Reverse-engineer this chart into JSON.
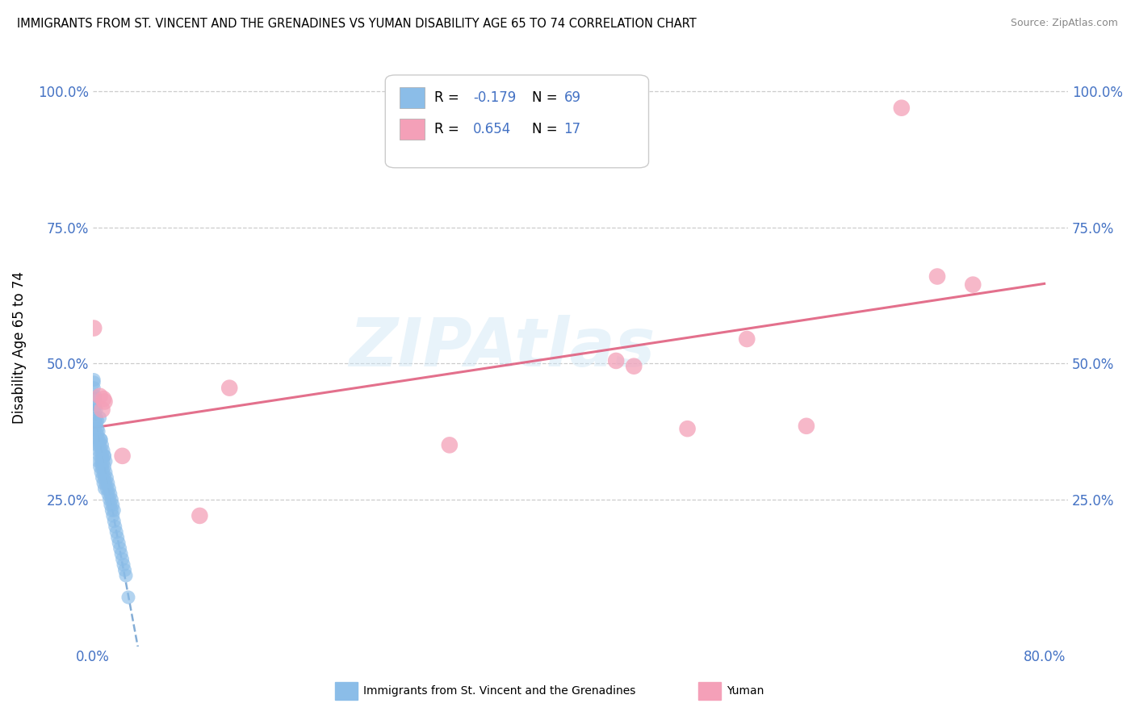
{
  "title": "IMMIGRANTS FROM ST. VINCENT AND THE GRENADINES VS YUMAN DISABILITY AGE 65 TO 74 CORRELATION CHART",
  "source": "Source: ZipAtlas.com",
  "ylabel": "Disability Age 65 to 74",
  "legend_label_blue": "Immigrants from St. Vincent and the Grenadines",
  "legend_label_pink": "Yuman",
  "R_blue": -0.179,
  "N_blue": 69,
  "R_pink": 0.654,
  "N_pink": 17,
  "xlim": [
    0.0,
    0.82
  ],
  "ylim": [
    -0.02,
    1.08
  ],
  "ytick_positions": [
    0.25,
    0.5,
    0.75,
    1.0
  ],
  "ytick_labels": [
    "25.0%",
    "50.0%",
    "75.0%",
    "100.0%"
  ],
  "blue_color": "#8BBDE8",
  "pink_color": "#F4A0B8",
  "trend_blue_color": "#6699CC",
  "trend_pink_color": "#E06080",
  "watermark": "ZIPAtlas",
  "blue_dots_x": [
    0.001,
    0.001,
    0.002,
    0.002,
    0.002,
    0.003,
    0.003,
    0.003,
    0.004,
    0.004,
    0.004,
    0.005,
    0.005,
    0.005,
    0.006,
    0.006,
    0.006,
    0.007,
    0.007,
    0.007,
    0.007,
    0.008,
    0.008,
    0.008,
    0.009,
    0.009,
    0.009,
    0.01,
    0.01,
    0.01,
    0.01,
    0.011,
    0.011,
    0.012,
    0.012,
    0.013,
    0.013,
    0.014,
    0.014,
    0.015,
    0.015,
    0.016,
    0.016,
    0.017,
    0.017,
    0.018,
    0.018,
    0.019,
    0.02,
    0.021,
    0.022,
    0.023,
    0.024,
    0.025,
    0.026,
    0.027,
    0.028,
    0.03,
    0.001,
    0.002,
    0.003,
    0.004,
    0.005,
    0.006,
    0.007,
    0.008,
    0.009,
    0.01,
    0.011
  ],
  "blue_dots_y": [
    0.455,
    0.47,
    0.42,
    0.44,
    0.38,
    0.4,
    0.36,
    0.39,
    0.38,
    0.35,
    0.37,
    0.34,
    0.36,
    0.32,
    0.33,
    0.35,
    0.31,
    0.34,
    0.36,
    0.3,
    0.32,
    0.33,
    0.29,
    0.31,
    0.28,
    0.3,
    0.32,
    0.29,
    0.31,
    0.27,
    0.33,
    0.28,
    0.3,
    0.27,
    0.29,
    0.26,
    0.28,
    0.25,
    0.27,
    0.24,
    0.26,
    0.23,
    0.25,
    0.22,
    0.24,
    0.21,
    0.23,
    0.2,
    0.19,
    0.18,
    0.17,
    0.16,
    0.15,
    0.14,
    0.13,
    0.12,
    0.11,
    0.07,
    0.465,
    0.435,
    0.415,
    0.395,
    0.375,
    0.4,
    0.36,
    0.35,
    0.34,
    0.33,
    0.32
  ],
  "pink_dots_x": [
    0.001,
    0.006,
    0.008,
    0.009,
    0.01,
    0.025,
    0.09,
    0.115,
    0.3,
    0.44,
    0.455,
    0.55,
    0.6,
    0.68,
    0.71,
    0.74,
    0.5
  ],
  "pink_dots_y": [
    0.565,
    0.44,
    0.415,
    0.435,
    0.43,
    0.33,
    0.22,
    0.455,
    0.35,
    0.505,
    0.495,
    0.545,
    0.385,
    0.97,
    0.66,
    0.645,
    0.38
  ]
}
